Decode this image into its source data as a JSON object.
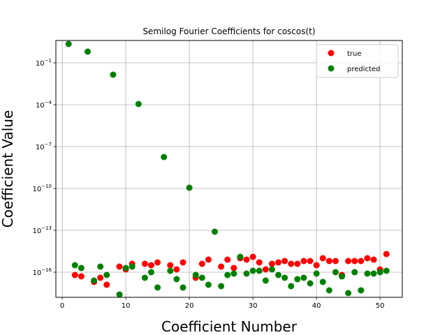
{
  "chart_data": {
    "type": "scatter",
    "title": "Semilog Fourier Coefficients for coscos(t)",
    "xlabel": "Coefficient Number",
    "ylabel": "Coefficient Value",
    "yscale": "log",
    "xlim": [
      -1,
      53.5
    ],
    "ylim_log10": [
      -17.8,
      0.6
    ],
    "xticks": [
      0,
      10,
      20,
      30,
      40,
      50
    ],
    "yticks_log10": [
      -1,
      -4,
      -7,
      -10,
      -13,
      -16
    ],
    "ytick_labels": [
      "10^-1",
      "10^-4",
      "10^-7",
      "10^-10",
      "10^-13",
      "10^-16"
    ],
    "grid": true,
    "legend_position": "top-right",
    "series": [
      {
        "name": "true",
        "color": "#ff0000",
        "points": [
          [
            2,
            -16.2
          ],
          [
            3,
            -16.3
          ],
          [
            5,
            -16.7
          ],
          [
            6,
            -16.4
          ],
          [
            7,
            -16.9
          ],
          [
            9,
            -15.6
          ],
          [
            10,
            -15.8
          ],
          [
            11,
            -15.4
          ],
          [
            13,
            -15.4
          ],
          [
            14,
            -15.5
          ],
          [
            15,
            -15.3
          ],
          [
            17,
            -15.5
          ],
          [
            18,
            -15.8
          ],
          [
            19,
            -15.3
          ],
          [
            21,
            -16.4
          ],
          [
            22,
            -15.4
          ],
          [
            23,
            -15.1
          ],
          [
            25,
            -15.6
          ],
          [
            26,
            -15.1
          ],
          [
            27,
            -15.7
          ],
          [
            28,
            -15.0
          ],
          [
            29,
            -15.1
          ],
          [
            30,
            -14.9
          ],
          [
            31,
            -15.3
          ],
          [
            32,
            -15.8
          ],
          [
            33,
            -15.4
          ],
          [
            34,
            -15.3
          ],
          [
            35,
            -15.2
          ],
          [
            36,
            -15.4
          ],
          [
            37,
            -15.4
          ],
          [
            38,
            -15.2
          ],
          [
            39,
            -15.2
          ],
          [
            40,
            -15.5
          ],
          [
            41,
            -15.0
          ],
          [
            42,
            -15.2
          ],
          [
            43,
            -15.2
          ],
          [
            44,
            -16.2
          ],
          [
            45,
            -15.2
          ],
          [
            46,
            -15.2
          ],
          [
            47,
            -15.2
          ],
          [
            48,
            -15.0
          ],
          [
            49,
            -15.1
          ],
          [
            50,
            -15.8
          ],
          [
            51,
            -14.7
          ]
        ]
      },
      {
        "name": "predicted",
        "color": "#008000",
        "points": [
          [
            1,
            0.35
          ],
          [
            2,
            -15.5
          ],
          [
            3,
            -15.7
          ],
          [
            4,
            -0.2
          ],
          [
            5,
            -16.6
          ],
          [
            6,
            -15.6
          ],
          [
            7,
            -16.2
          ],
          [
            8,
            -1.85
          ],
          [
            9,
            -17.6
          ],
          [
            10,
            -15.7
          ],
          [
            11,
            -15.6
          ],
          [
            12,
            -3.95
          ],
          [
            13,
            -16.4
          ],
          [
            14,
            -16.0
          ],
          [
            15,
            -17.1
          ],
          [
            16,
            -7.75
          ],
          [
            17,
            -15.9
          ],
          [
            18,
            -16.5
          ],
          [
            19,
            -17.1
          ],
          [
            20,
            -9.95
          ],
          [
            21,
            -16.2
          ],
          [
            22,
            -16.4
          ],
          [
            23,
            -16.9
          ],
          [
            24,
            -13.1
          ],
          [
            25,
            -17.0
          ],
          [
            26,
            -16.2
          ],
          [
            27,
            -16.1
          ],
          [
            28,
            -14.9
          ],
          [
            29,
            -16.1
          ],
          [
            30,
            -15.9
          ],
          [
            31,
            -15.9
          ],
          [
            32,
            -16.6
          ],
          [
            33,
            -15.8
          ],
          [
            34,
            -16.2
          ],
          [
            35,
            -16.4
          ],
          [
            36,
            -17.0
          ],
          [
            37,
            -16.5
          ],
          [
            38,
            -16.4
          ],
          [
            39,
            -16.8
          ],
          [
            40,
            -16.1
          ],
          [
            41,
            -16.7
          ],
          [
            42,
            -17.3
          ],
          [
            43,
            -16.0
          ],
          [
            44,
            -16.3
          ],
          [
            45,
            -17.5
          ],
          [
            46,
            -16.0
          ],
          [
            47,
            -17.3
          ],
          [
            48,
            -16.1
          ],
          [
            49,
            -16.1
          ],
          [
            50,
            -16.0
          ],
          [
            51,
            -15.9
          ]
        ]
      }
    ]
  }
}
